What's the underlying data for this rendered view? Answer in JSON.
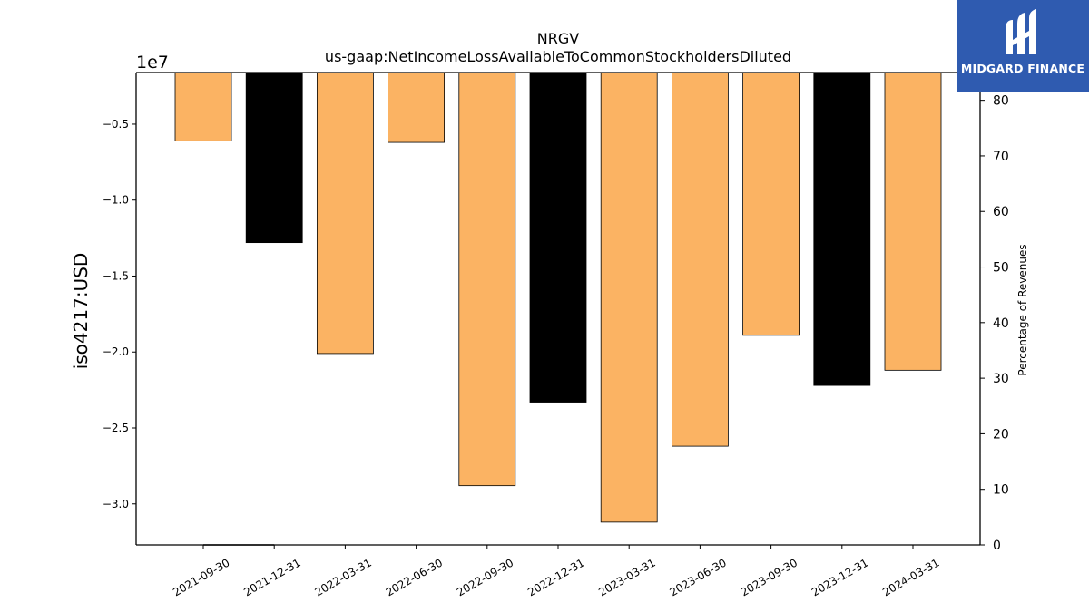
{
  "chart_data": {
    "type": "bar",
    "title": "NRGV",
    "subtitle": "us-gaap:NetIncomeLossAvailableToCommonStockholdersDiluted",
    "ylabel": "iso4217:USD",
    "y_offset_label": "1e7",
    "y2label": "Percentage of Revenues",
    "ylim": [
      -3.27,
      -0.16
    ],
    "y_ticks": [
      -0.5,
      -1.0,
      -1.5,
      -2.0,
      -2.5,
      -3.0
    ],
    "y_tick_labels": [
      "−0.5",
      "−1.0",
      "−1.5",
      "−2.0",
      "−2.5",
      "−3.0"
    ],
    "y2lim": [
      0,
      85
    ],
    "y2_ticks": [
      0,
      10,
      20,
      30,
      40,
      50,
      60,
      70,
      80
    ],
    "categories": [
      "2021-09-30",
      "2021-12-31",
      "2022-03-31",
      "2022-06-30",
      "2022-09-30",
      "2022-12-31",
      "2023-03-31",
      "2023-06-30",
      "2023-09-30",
      "2023-12-31",
      "2024-03-31"
    ],
    "values": [
      -0.61,
      -1.28,
      -2.01,
      -0.62,
      -2.88,
      -2.33,
      -3.12,
      -2.62,
      -1.89,
      -2.22,
      -2.12
    ],
    "bar_colors": [
      "#fbb363",
      "#000000",
      "#fbb363",
      "#fbb363",
      "#fbb363",
      "#000000",
      "#fbb363",
      "#fbb363",
      "#fbb363",
      "#000000",
      "#fbb363"
    ],
    "secondary_line": {
      "x": [
        "2021-09-30",
        "2021-12-31"
      ],
      "values": [
        0,
        0
      ],
      "color": "#000000"
    },
    "grid": false,
    "legend": "none"
  },
  "logo": {
    "text": "MIDGARD FINANCE"
  },
  "colors": {
    "accent": "#fbb363",
    "annual": "#000000",
    "logo_bg": "#2f5bb0"
  }
}
